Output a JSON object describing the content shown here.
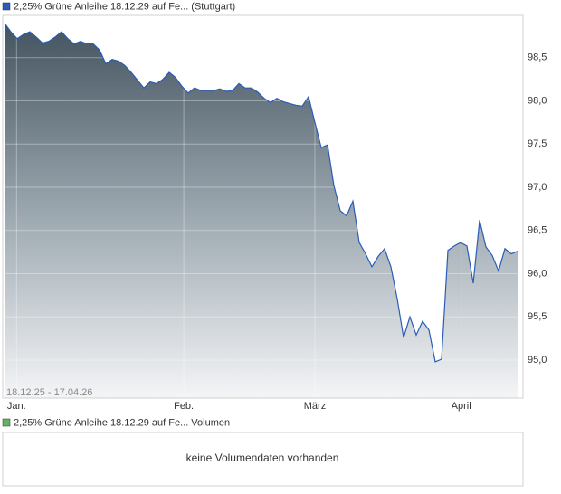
{
  "chart_data": {
    "type": "area",
    "series": [
      {
        "name": "2,25% Grüne Anleihe 18.12.29 auf Fe... (Stuttgart)",
        "color": "#2a5cb8",
        "values": [
          98.9,
          98.8,
          98.72,
          98.77,
          98.8,
          98.74,
          98.67,
          98.69,
          98.74,
          98.8,
          98.72,
          98.66,
          98.69,
          98.66,
          98.66,
          98.59,
          98.43,
          98.48,
          98.46,
          98.41,
          98.33,
          98.24,
          98.15,
          98.22,
          98.2,
          98.25,
          98.33,
          98.27,
          98.17,
          98.09,
          98.15,
          98.12,
          98.12,
          98.12,
          98.14,
          98.11,
          98.12,
          98.2,
          98.15,
          98.15,
          98.1,
          98.03,
          97.98,
          98.03,
          97.99,
          97.97,
          97.95,
          97.94,
          98.05,
          97.75,
          97.46,
          97.49,
          97.02,
          96.73,
          96.67,
          96.84,
          96.36,
          96.23,
          96.08,
          96.2,
          96.29,
          96.08,
          95.71,
          95.26,
          95.5,
          95.29,
          95.45,
          95.35,
          94.98,
          95.01,
          96.27,
          96.32,
          96.36,
          96.32,
          95.89,
          96.62,
          96.31,
          96.21,
          96.03,
          96.29,
          96.23,
          96.26
        ]
      }
    ],
    "date_range": "18.12.25 - 17.04.26",
    "xlim": [
      -0.29,
      81.86
    ],
    "xticks": [
      {
        "value": 1.9,
        "label": "Jan."
      },
      {
        "value": 28.3,
        "label": "Feb."
      },
      {
        "value": 49.0,
        "label": "März"
      },
      {
        "value": 72.1,
        "label": "April"
      }
    ],
    "ylim": [
      94.56,
      98.99
    ],
    "yticks": [
      {
        "value": 95,
        "label": "95,0"
      },
      {
        "value": 95.5,
        "label": "95,5"
      },
      {
        "value": 96,
        "label": "96,0"
      },
      {
        "value": 96.5,
        "label": "96,5"
      },
      {
        "value": 97,
        "label": "97,0"
      },
      {
        "value": 97.5,
        "label": "97,5"
      },
      {
        "value": 98,
        "label": "98,0"
      },
      {
        "value": 98.5,
        "label": "98,5"
      }
    ],
    "grid": true
  },
  "volume_panel": {
    "legend": "2,25% Grüne Anleihe 18.12.29 auf Fe... Volumen",
    "color": "#5cb85c",
    "message": "keine Volumendaten vorhanden"
  }
}
